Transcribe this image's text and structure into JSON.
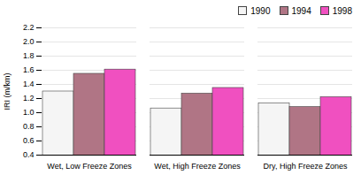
{
  "chart_data": {
    "type": "bar",
    "categories": [
      "Wet, Low Freeze Zones",
      "Wet, High Freeze Zones",
      "Dry, High Freeze Zones"
    ],
    "series": [
      {
        "name": "1990",
        "color": "#f5f5f5",
        "values": [
          1.3,
          1.06,
          1.13
        ]
      },
      {
        "name": "1994",
        "color": "#b07585",
        "values": [
          1.55,
          1.27,
          1.08
        ]
      },
      {
        "name": "1998",
        "color": "#f050c0",
        "values": [
          1.61,
          1.35,
          1.22
        ]
      }
    ],
    "ylabel": "IRI (m/km)",
    "ylim": [
      0.4,
      2.2
    ],
    "yticks": [
      0.4,
      0.6,
      0.8,
      {
        "value": 1.0,
        "label": "1.0"
      },
      1.2,
      1.4,
      1.6,
      1.8,
      {
        "value": 2.0,
        "label": "2.0"
      },
      2.2
    ],
    "grid": true,
    "legend": "upper right"
  }
}
